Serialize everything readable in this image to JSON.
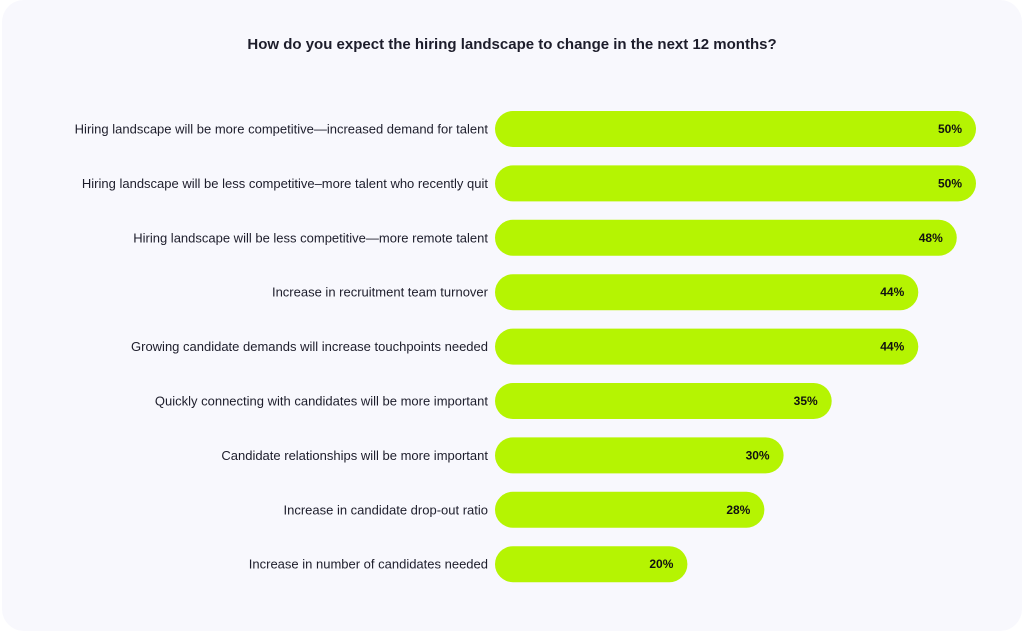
{
  "colors": {
    "bar": "#b5f402",
    "background": "#f8f8fd",
    "text": "#1d1d2b"
  },
  "chart_data": {
    "type": "bar",
    "orientation": "horizontal",
    "title": "How do you expect the hiring landscape to change in the next 12 months?",
    "xlabel": "",
    "ylabel": "",
    "grid": false,
    "xlim": [
      0,
      50
    ],
    "categories": [
      "Hiring landscape will be more competitive—increased demand for talent",
      "Hiring landscape will be less competitive–more talent who recently quit",
      "Hiring landscape will be less competitive—more remote talent",
      "Increase in recruitment team turnover",
      "Growing candidate demands will increase touchpoints needed",
      "Quickly connecting with candidates will be more important",
      "Candidate relationships will be more important",
      "Increase in candidate drop-out ratio",
      "Increase in number of candidates needed"
    ],
    "values": [
      50,
      50,
      48,
      44,
      44,
      35,
      30,
      28,
      20
    ],
    "value_labels": [
      "50%",
      "50%",
      "48%",
      "44%",
      "44%",
      "35%",
      "30%",
      "28%",
      "20%"
    ]
  }
}
